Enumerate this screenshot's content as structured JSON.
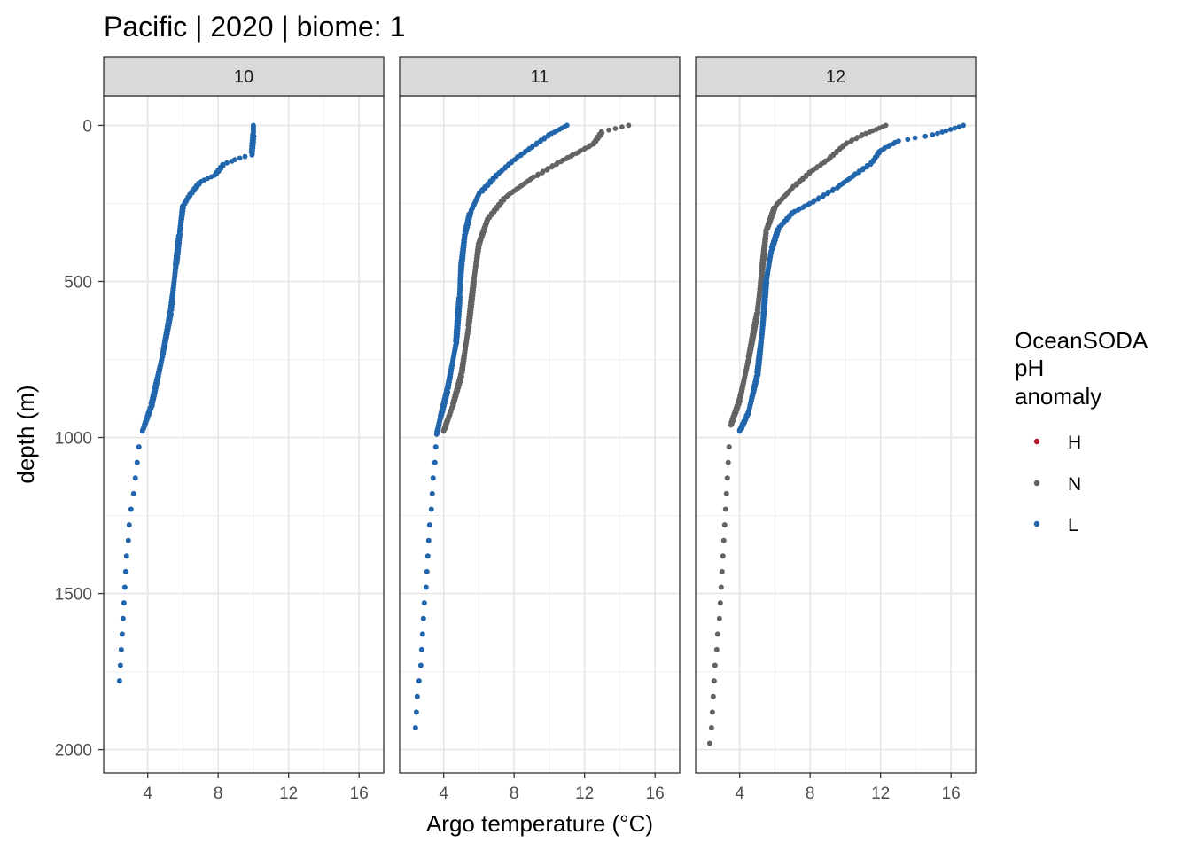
{
  "chart_data": {
    "type": "scatter",
    "title": "Pacific | 2020 | biome: 1",
    "xlabel": "Argo temperature (°C)",
    "ylabel": "depth (m)",
    "x_ticks": [
      4,
      8,
      12,
      16
    ],
    "y_ticks": [
      0,
      500,
      1000,
      1500,
      2000
    ],
    "xlim": [
      1.5,
      17.4
    ],
    "ylim": [
      2075,
      -95
    ],
    "legend": {
      "title_lines": [
        "OceanSODA",
        "pH",
        "anomaly"
      ],
      "position": "right",
      "entries": [
        {
          "label": "H",
          "color": "#b2182b"
        },
        {
          "label": "N",
          "color": "#636363"
        },
        {
          "label": "L",
          "color": "#2166ac"
        }
      ]
    },
    "panels": [
      {
        "strip": "10",
        "series": [
          {
            "name": "L",
            "color": "#2166ac",
            "profile": [
              [
                10.0,
                0
              ],
              [
                10.0,
                30
              ],
              [
                9.9,
                95
              ],
              [
                9.2,
                105
              ],
              [
                8.3,
                125
              ],
              [
                7.8,
                160
              ],
              [
                7.0,
                180
              ],
              [
                6.3,
                230
              ],
              [
                6.0,
                260
              ],
              [
                5.8,
                350
              ],
              [
                5.6,
                450
              ],
              [
                5.3,
                600
              ],
              [
                4.8,
                750
              ],
              [
                4.2,
                900
              ],
              [
                3.7,
                980
              ]
            ],
            "deep": [
              [
                3.5,
                1030
              ],
              [
                3.4,
                1080
              ],
              [
                3.3,
                1130
              ],
              [
                3.2,
                1180
              ],
              [
                3.05,
                1230
              ],
              [
                2.95,
                1280
              ],
              [
                2.9,
                1330
              ],
              [
                2.8,
                1380
              ],
              [
                2.75,
                1430
              ],
              [
                2.7,
                1480
              ],
              [
                2.65,
                1530
              ],
              [
                2.6,
                1580
              ],
              [
                2.55,
                1630
              ],
              [
                2.5,
                1680
              ],
              [
                2.45,
                1730
              ],
              [
                2.4,
                1780
              ]
            ]
          }
        ]
      },
      {
        "strip": "11",
        "series": [
          {
            "name": "N",
            "color": "#636363",
            "profile": [
              [
                14.5,
                0
              ],
              [
                13.0,
                20
              ],
              [
                12.5,
                60
              ],
              [
                11.5,
                90
              ],
              [
                10.5,
                120
              ],
              [
                9.0,
                170
              ],
              [
                7.5,
                230
              ],
              [
                6.5,
                300
              ],
              [
                6.0,
                380
              ],
              [
                5.7,
                500
              ],
              [
                5.4,
                650
              ],
              [
                5.0,
                800
              ],
              [
                4.5,
                900
              ],
              [
                4.0,
                980
              ]
            ],
            "deep": []
          },
          {
            "name": "L",
            "color": "#2166ac",
            "profile": [
              [
                11.0,
                0
              ],
              [
                10.0,
                30
              ],
              [
                9.0,
                70
              ],
              [
                8.0,
                110
              ],
              [
                7.0,
                160
              ],
              [
                6.0,
                220
              ],
              [
                5.5,
                280
              ],
              [
                5.2,
                350
              ],
              [
                5.0,
                450
              ],
              [
                4.9,
                550
              ],
              [
                4.7,
                700
              ],
              [
                4.2,
                850
              ],
              [
                3.8,
                940
              ],
              [
                3.6,
                990
              ]
            ],
            "deep": [
              [
                3.55,
                1030
              ],
              [
                3.5,
                1080
              ],
              [
                3.4,
                1130
              ],
              [
                3.35,
                1180
              ],
              [
                3.3,
                1230
              ],
              [
                3.2,
                1280
              ],
              [
                3.15,
                1330
              ],
              [
                3.1,
                1380
              ],
              [
                3.05,
                1430
              ],
              [
                3.0,
                1480
              ],
              [
                2.9,
                1530
              ],
              [
                2.85,
                1580
              ],
              [
                2.8,
                1630
              ],
              [
                2.75,
                1680
              ],
              [
                2.7,
                1730
              ],
              [
                2.6,
                1780
              ],
              [
                2.5,
                1830
              ],
              [
                2.45,
                1880
              ],
              [
                2.4,
                1930
              ]
            ]
          }
        ]
      },
      {
        "strip": "12",
        "series": [
          {
            "name": "N",
            "color": "#636363",
            "profile": [
              [
                12.3,
                0
              ],
              [
                11.0,
                30
              ],
              [
                10.0,
                60
              ],
              [
                9.0,
                110
              ],
              [
                8.0,
                150
              ],
              [
                7.0,
                200
              ],
              [
                6.0,
                260
              ],
              [
                5.5,
                340
              ],
              [
                5.3,
                450
              ],
              [
                5.0,
                600
              ],
              [
                4.5,
                750
              ],
              [
                4.0,
                880
              ],
              [
                3.5,
                960
              ]
            ],
            "deep": [
              [
                3.4,
                1030
              ],
              [
                3.35,
                1080
              ],
              [
                3.3,
                1130
              ],
              [
                3.25,
                1180
              ],
              [
                3.2,
                1230
              ],
              [
                3.15,
                1280
              ],
              [
                3.1,
                1330
              ],
              [
                3.05,
                1380
              ],
              [
                3.0,
                1430
              ],
              [
                2.95,
                1480
              ],
              [
                2.9,
                1530
              ],
              [
                2.85,
                1580
              ],
              [
                2.75,
                1630
              ],
              [
                2.7,
                1680
              ],
              [
                2.6,
                1730
              ],
              [
                2.55,
                1780
              ],
              [
                2.5,
                1830
              ],
              [
                2.45,
                1880
              ],
              [
                2.4,
                1930
              ],
              [
                2.3,
                1980
              ]
            ]
          },
          {
            "name": "L",
            "color": "#2166ac",
            "profile": [
              [
                16.7,
                0
              ],
              [
                15.0,
                30
              ],
              [
                13.0,
                50
              ],
              [
                12.0,
                80
              ],
              [
                11.5,
                120
              ],
              [
                10.5,
                160
              ],
              [
                9.5,
                200
              ],
              [
                8.0,
                250
              ],
              [
                7.0,
                280
              ],
              [
                6.2,
                330
              ],
              [
                5.8,
                400
              ],
              [
                5.5,
                500
              ],
              [
                5.3,
                650
              ],
              [
                5.0,
                800
              ],
              [
                4.5,
                920
              ],
              [
                4.0,
                980
              ]
            ],
            "deep": []
          }
        ]
      }
    ]
  }
}
